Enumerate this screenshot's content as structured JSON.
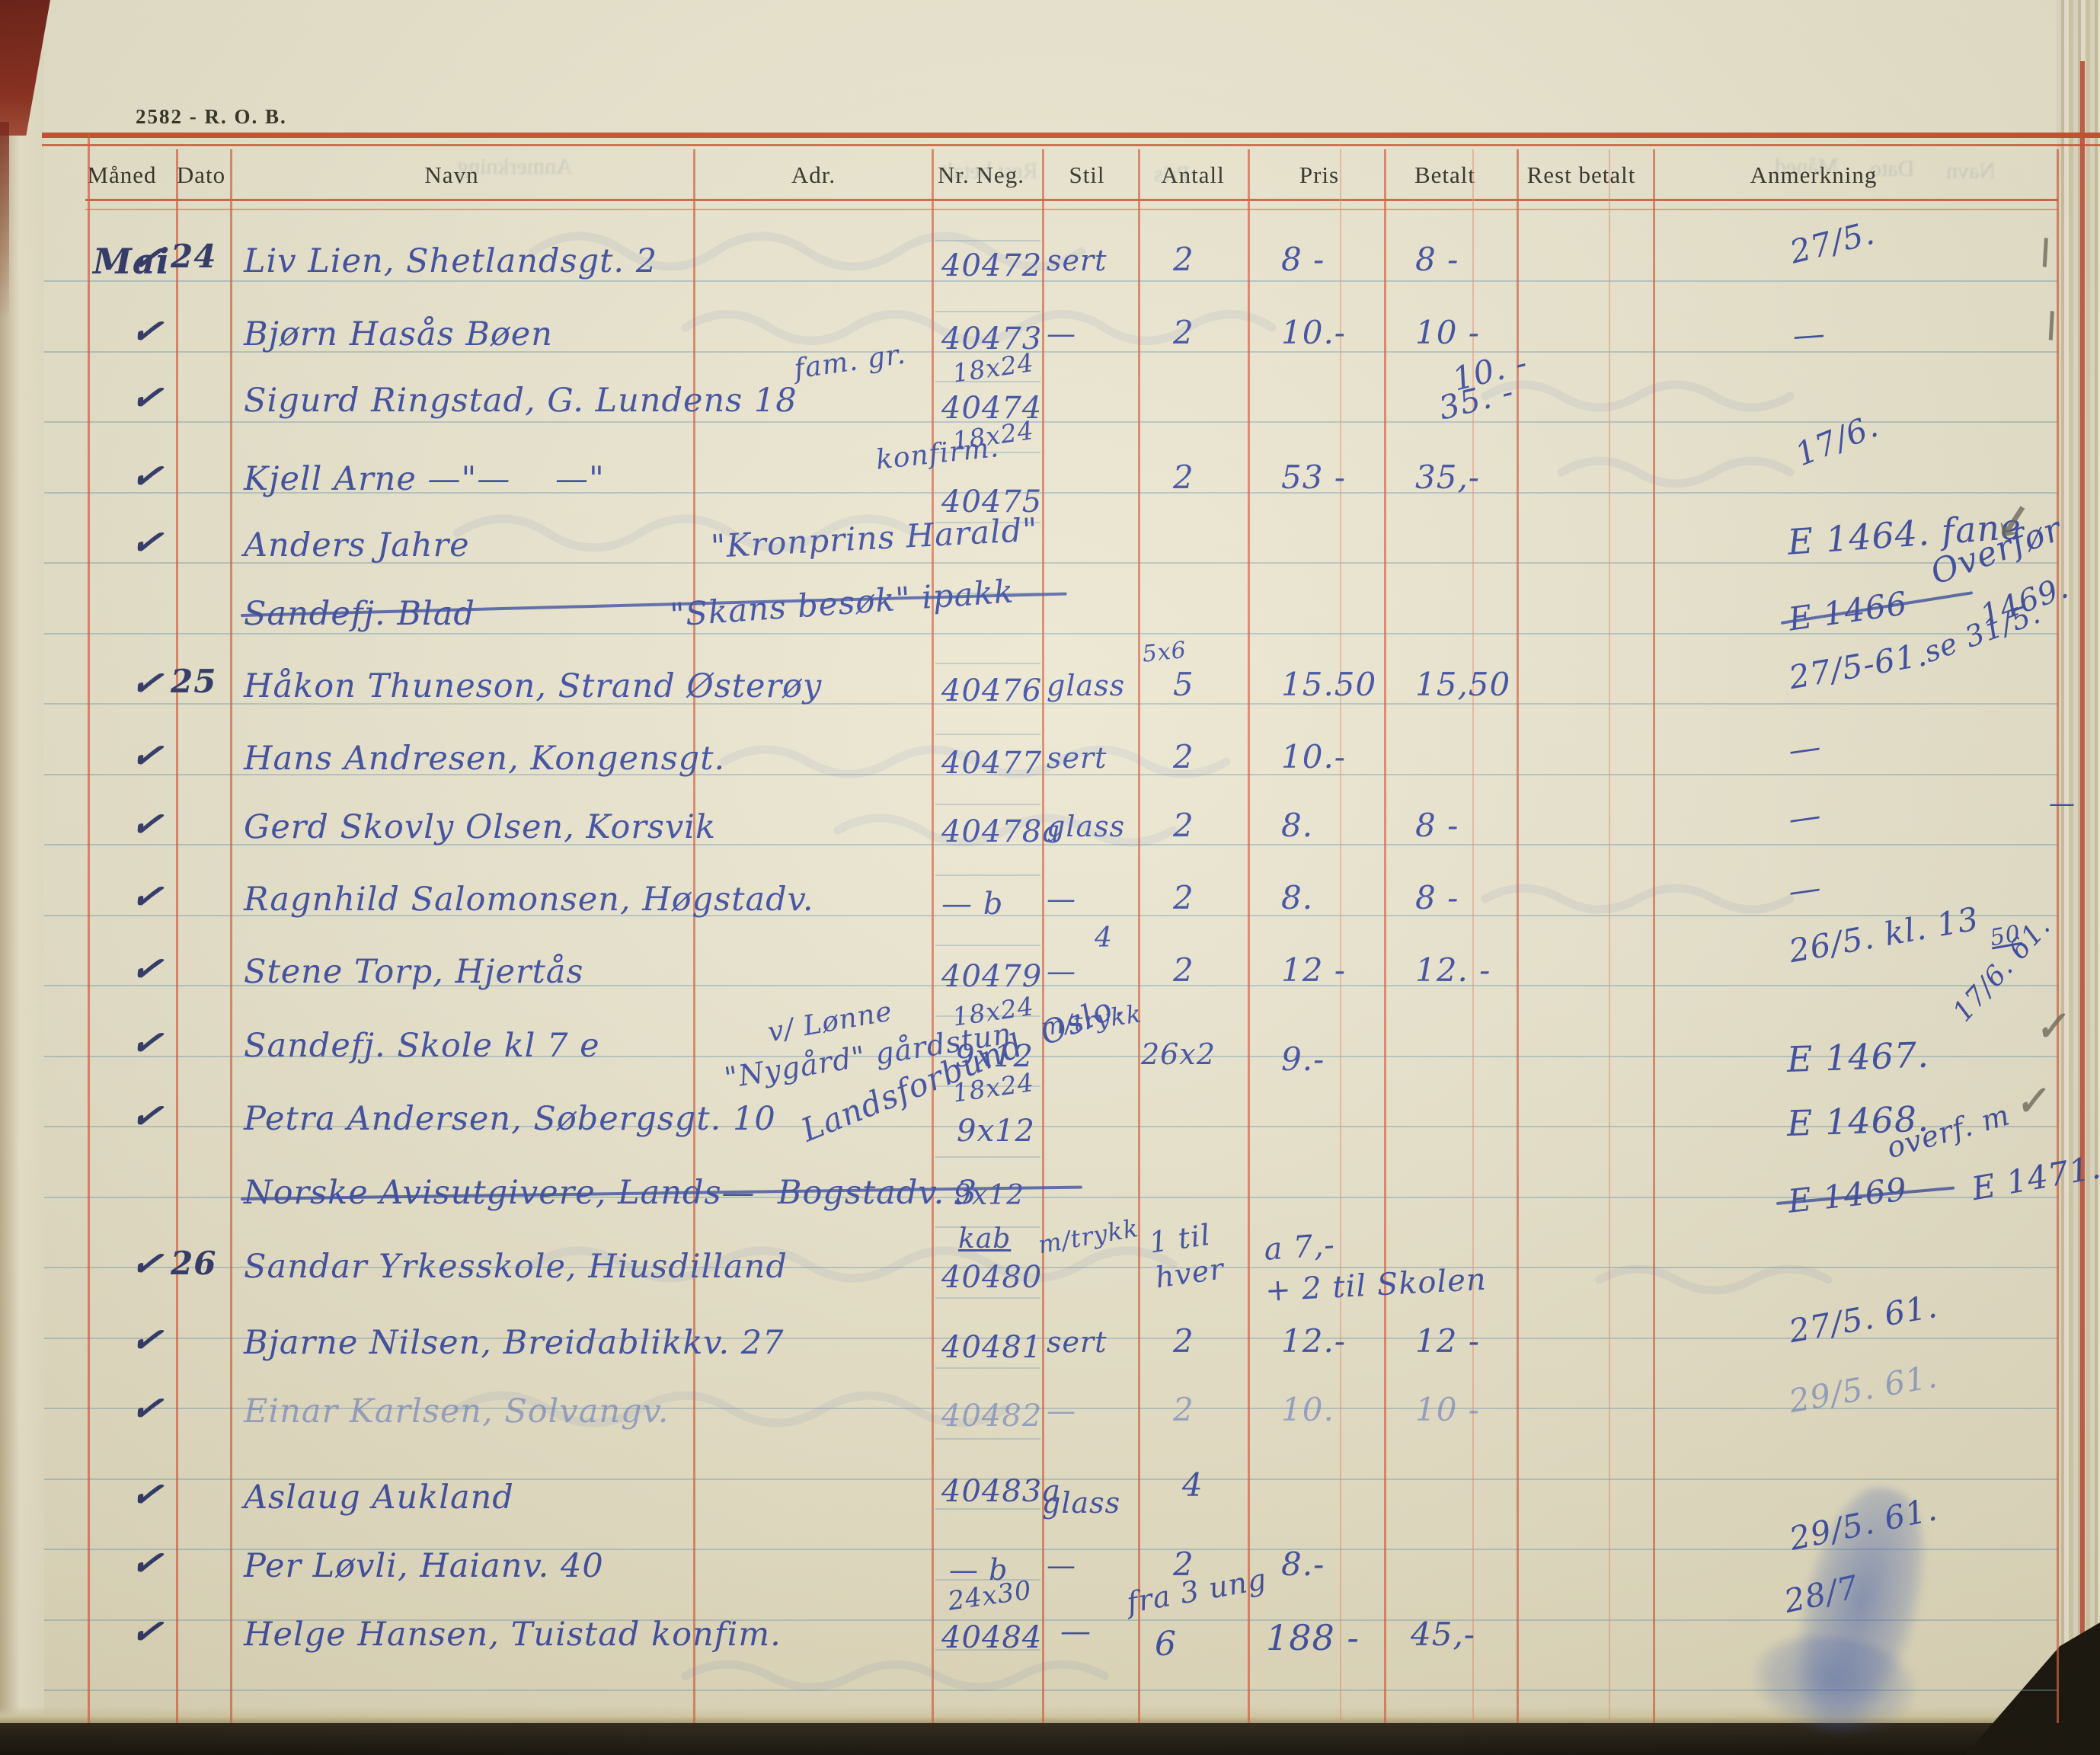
{
  "page": {
    "code": "2582 - R. O. B."
  },
  "table": {
    "columns": [
      "Måned",
      "Dato",
      "Navn",
      "Adr.",
      "Nr. Neg.",
      "Stil",
      "Antall",
      "Pris",
      "Betalt",
      "Rest betalt",
      "Anmerkning"
    ]
  },
  "rows": [
    {
      "maaned": "Mai",
      "check": "✓",
      "dato": "24",
      "navn": "Liv Lien, Shetlandsgt. 2",
      "nr": "40472",
      "stil": "sert",
      "antall": "2",
      "pris": "8 -",
      "betalt": "8 -",
      "anm": "27/5.",
      "mark": "\\"
    },
    {
      "check": "✓",
      "navn": "Bjørn Hasås Bøen",
      "nr": "40473",
      "stil": "—",
      "antall": "2",
      "pris": "10.-",
      "betalt": "10 -",
      "anm": "—",
      "mark": "\\"
    },
    {
      "check": "✓",
      "navn": "Sigurd Ringstad, G. Lundens 18",
      "adr_note": "fam. gr.",
      "nr_top": "18x24",
      "nr": "40474",
      "betalt": "10. -",
      "betalt2": "35. -"
    },
    {
      "check": "✓",
      "navn": "Kjell Arne —\"—    —\"",
      "adr_note": "konfirm.",
      "nr_top": "18x24",
      "nr": "40475",
      "antall": "2",
      "pris": "53 -",
      "betalt": "35,-",
      "anm": "17/6."
    },
    {
      "check": "✓",
      "navn": "Anders Jahre",
      "navn_note": "\"Kronprins Harald\"",
      "anm": "E 1464. fane",
      "mark": "↙"
    },
    {
      "navn": "Sandefj. Blad",
      "navn_note": "\"Skans besøk\" ipakk",
      "struck": true,
      "anm": "E 1466",
      "anm_struck": true,
      "anm2": "Overfør",
      "anm3": "1469.",
      "anm4": "se 31/5."
    },
    {
      "check": "✓",
      "dato": "25",
      "navn": "Håkon Thuneson, Strand Østerøy",
      "nr": "40476",
      "stil": "glass",
      "antall_top": "5x6",
      "antall": "5",
      "pris": "15.50",
      "betalt": "15,50",
      "anm": "27/5-61."
    },
    {
      "check": "✓",
      "navn": "Hans Andresen, Kongensgt.",
      "nr": "40477",
      "stil": "sert",
      "antall": "2",
      "pris": "10.-",
      "anm": "—"
    },
    {
      "check": "✓",
      "navn": "Gerd Skovly Olsen, Korsvik",
      "nr": "40478a",
      "stil": "glass",
      "antall": "2",
      "pris": "8.",
      "betalt": "8 -",
      "anm": "—",
      "rest": "—"
    },
    {
      "check": "✓",
      "navn": "Ragnhild Salomonsen, Høgstadv.",
      "nr": "— b",
      "stil": "—",
      "antall": "2",
      "pris": "8.",
      "betalt": "8 -",
      "anm": "—"
    },
    {
      "check": "✓",
      "navn": "Stene Torp, Hjertås",
      "nr_top": "4",
      "nr": "40479",
      "stil": "—",
      "antall": "2",
      "pris": "12 -",
      "betalt": "12. -",
      "anm": "26/5. kl. 13",
      "anm2": "50"
    },
    {
      "check": "✓",
      "navn": "Sandefj. Skole kl 7 e",
      "adr_note": "v/ Lønne",
      "nr_top": "18x24",
      "nr": "9x12",
      "stil": "m/trykk",
      "antall": "26x2",
      "pris": "9.-",
      "anm": "E 1467.",
      "anm2": "17/6. 61.",
      "mark": "✓"
    },
    {
      "check": "✓",
      "navn": "Petra Andersen, Søbergsgt. 10",
      "navn_note": "\"Nygård\" gårdstun",
      "nr_top": "18x24",
      "nr": "9x12",
      "anm": "E 1468.",
      "mark": "✓"
    },
    {
      "navn": "Norske Avisutgivere, Lands—  Bogstadv. 3",
      "navn_note": "Landsforbund  Oslo.",
      "struck": true,
      "nr": "9x12",
      "anm": "E 1469",
      "anm_struck": true,
      "anm2": "overf. m",
      "anm3": "E 1471."
    },
    {
      "check": "✓",
      "dato": "26",
      "navn": "Sandar Yrkesskole, Hiusdilland",
      "nr_top": "kab",
      "nr": "40480",
      "stil": "m/trykk",
      "antall": "1 til",
      "antall2": "hver",
      "pris": "a 7,-",
      "pris2": "+ 2 til Skolen"
    },
    {
      "check": "✓",
      "navn": "Bjarne Nilsen, Breidablikkv. 27",
      "nr": "40481",
      "stil": "sert",
      "antall": "2",
      "pris": "12.-",
      "betalt": "12 -",
      "anm": "27/5. 61."
    },
    {
      "check": "✓",
      "navn": "Einar Karlsen, Solvangv.",
      "nr": "40482",
      "stil": "—",
      "antall": "2",
      "pris": "10.",
      "betalt": "10 -",
      "anm": "29/5. 61."
    },
    {
      "check": "✓",
      "navn": "Aslaug Aukland",
      "nr": "40483a",
      "stil": "glass",
      "antall": "4"
    },
    {
      "check": "✓",
      "navn": "Per Løvli, Haianv. 40",
      "nr": "— b",
      "stil": "—",
      "antall": "2",
      "pris": "8.-",
      "anm": "29/5. 61."
    },
    {
      "check": "✓",
      "navn": "Helge Hansen, Tuistad konfim.",
      "nr_top": "24x30",
      "nr": "40484",
      "stil": "—",
      "antall_top": "fra 3 ung",
      "antall": "6",
      "pris": "188 -",
      "betalt": "45,-",
      "anm": "28/7"
    }
  ]
}
